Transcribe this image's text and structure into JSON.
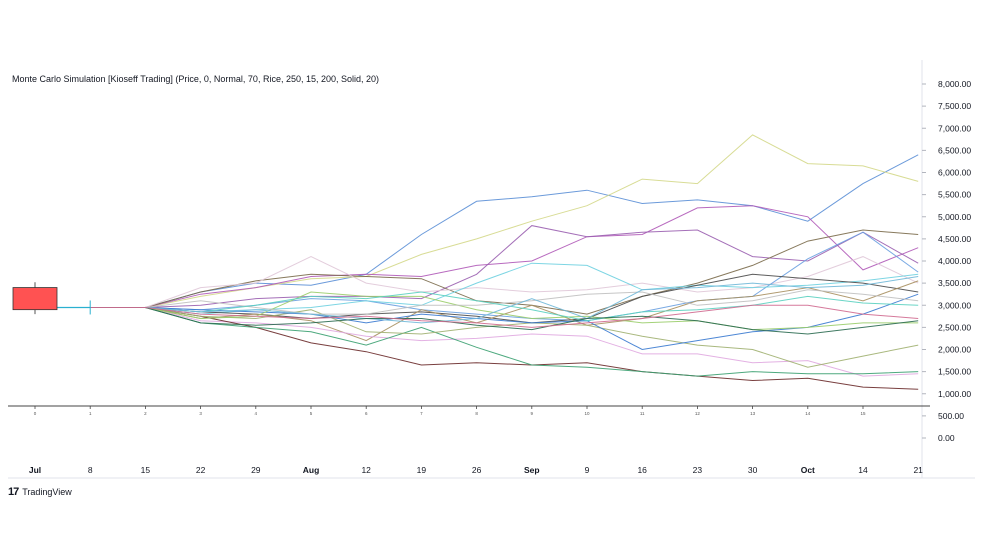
{
  "header": {
    "title": "Monte Carlo Simulation [Kioseff Trading] (Price, 0, Normal, 70, Rice, 250, 15, 200, Solid, 20)"
  },
  "branding": {
    "logo": "17",
    "name": "TradingView"
  },
  "chart_data": {
    "type": "line",
    "title": "Monte Carlo Simulation [Kioseff Trading] (Price, 0, Normal, 70, Rice, 250, 15, 200, Solid, 20)",
    "xlabel": "",
    "ylabel": "",
    "ylim": [
      0,
      8000
    ],
    "y_ticks": [
      "8,000.00",
      "7,500.00",
      "7,000.00",
      "6,500.00",
      "6,000.00",
      "5,500.00",
      "5,000.00",
      "4,500.00",
      "4,000.00",
      "3,500.00",
      "3,000.00",
      "2,500.00",
      "2,000.00",
      "1,500.00",
      "1,000.00",
      "500.00",
      "0.00"
    ],
    "y_tick_values": [
      8000,
      7500,
      7000,
      6500,
      6000,
      5500,
      5000,
      4500,
      4000,
      3500,
      3000,
      2500,
      2000,
      1500,
      1000,
      500,
      0
    ],
    "x_date_labels": [
      "Jul",
      "8",
      "15",
      "22",
      "29",
      "Aug",
      "12",
      "19",
      "26",
      "Sep",
      "9",
      "16",
      "23",
      "30",
      "Oct",
      "14",
      "21"
    ],
    "step_labels": [
      "0",
      "1",
      "2",
      "3",
      "4",
      "5",
      "6",
      "7",
      "8",
      "9",
      "10",
      "11",
      "12",
      "13",
      "14",
      "15"
    ],
    "candle": {
      "open": 2900,
      "close": 3400,
      "high": 3520,
      "low": 2800,
      "color": "#ff5252"
    },
    "start_value": 2950,
    "grid": false,
    "series": [
      {
        "color": "#5b8fd6",
        "values": [
          2950,
          3300,
          3500,
          3450,
          3700,
          4600,
          5350,
          5450,
          5600,
          5300,
          5380,
          5250,
          4900,
          5750,
          6400
        ]
      },
      {
        "color": "#d4d88a",
        "values": [
          2950,
          3200,
          3400,
          3600,
          3650,
          4150,
          4500,
          4900,
          5250,
          5850,
          5750,
          6850,
          6200,
          6150,
          5800
        ]
      },
      {
        "color": "#b05ab8",
        "values": [
          2950,
          3250,
          3400,
          3650,
          3700,
          3650,
          3900,
          4000,
          4550,
          4600,
          5200,
          5250,
          5000,
          3800,
          4300
        ]
      },
      {
        "color": "#9a5fb0",
        "values": [
          2950,
          3000,
          3150,
          3200,
          3200,
          3150,
          3700,
          4800,
          4550,
          4650,
          4700,
          4100,
          4000,
          4650,
          3950
        ]
      },
      {
        "color": "#7a6a4a",
        "values": [
          2950,
          3300,
          3550,
          3700,
          3650,
          3600,
          3100,
          3000,
          2800,
          3200,
          3500,
          3900,
          4450,
          4700,
          4600
        ]
      },
      {
        "color": "#e0c8d8",
        "values": [
          2950,
          3400,
          3500,
          4100,
          3500,
          3300,
          3400,
          3300,
          3350,
          3500,
          3300,
          3400,
          3650,
          4100,
          3500
        ]
      },
      {
        "color": "#6aa0e0",
        "values": [
          2950,
          2900,
          3000,
          3150,
          3100,
          2900,
          2800,
          2700,
          2650,
          2850,
          3100,
          3200,
          4050,
          4650,
          3750
        ]
      },
      {
        "color": "#6fd0e0",
        "values": [
          2950,
          2800,
          2900,
          2950,
          3100,
          3000,
          3500,
          3950,
          3900,
          3350,
          3450,
          3400,
          3450,
          3550,
          3700
        ]
      },
      {
        "color": "#4a4a4a",
        "values": [
          2950,
          2850,
          2800,
          2700,
          2800,
          2850,
          2750,
          2600,
          2700,
          3200,
          3450,
          3700,
          3600,
          3500,
          3300
        ]
      },
      {
        "color": "#a89060",
        "values": [
          2950,
          2700,
          2800,
          2650,
          2200,
          2900,
          2600,
          3000,
          2550,
          2700,
          3100,
          3200,
          3400,
          3100,
          3550
        ]
      },
      {
        "color": "#e0a8e0",
        "values": [
          2950,
          2650,
          2600,
          2500,
          2300,
          2200,
          2250,
          2350,
          2300,
          1900,
          1900,
          1700,
          1750,
          1400,
          1450
        ]
      },
      {
        "color": "#6a2a2a",
        "values": [
          2950,
          2750,
          2500,
          2150,
          1950,
          1650,
          1700,
          1650,
          1700,
          1500,
          1400,
          1300,
          1350,
          1150,
          1100
        ]
      },
      {
        "color": "#3aa070",
        "values": [
          2950,
          2600,
          2500,
          2400,
          2100,
          2500,
          2050,
          1650,
          1600,
          1500,
          1400,
          1500,
          1450,
          1450,
          1500
        ]
      },
      {
        "color": "#a0b070",
        "values": [
          2950,
          2750,
          2700,
          2900,
          2400,
          2350,
          2500,
          2600,
          2550,
          2300,
          2100,
          2000,
          1600,
          1850,
          2100
        ]
      },
      {
        "color": "#3a7ad0",
        "values": [
          2950,
          2900,
          2850,
          2800,
          2600,
          2800,
          2700,
          2600,
          2650,
          2000,
          2200,
          2400,
          2500,
          2800,
          3250
        ]
      },
      {
        "color": "#9acd6a",
        "values": [
          2950,
          2700,
          2750,
          3300,
          3200,
          3200,
          2900,
          2700,
          2750,
          2600,
          2650,
          2450,
          2500,
          2600,
          2600
        ]
      },
      {
        "color": "#c0c0c0",
        "values": [
          2950,
          3100,
          2950,
          2800,
          2800,
          3000,
          3000,
          3100,
          3250,
          3300,
          3000,
          3100,
          3350,
          3250,
          3100
        ]
      },
      {
        "color": "#5ad0c0",
        "values": [
          2950,
          2850,
          3000,
          3200,
          3150,
          3300,
          3100,
          2900,
          2650,
          2850,
          2900,
          3000,
          3200,
          3050,
          3000
        ]
      },
      {
        "color": "#70b8d8",
        "values": [
          2950,
          2850,
          2900,
          2800,
          2700,
          2600,
          2700,
          3150,
          2700,
          3350,
          3400,
          3500,
          3400,
          3450,
          3650
        ]
      },
      {
        "color": "#2a6a50",
        "values": [
          2950,
          2600,
          2550,
          2600,
          2700,
          2700,
          2550,
          2450,
          2700,
          2750,
          2650,
          2450,
          2350,
          2500,
          2650
        ]
      },
      {
        "color": "#d06a90",
        "values": [
          2950,
          2800,
          2750,
          2700,
          2750,
          2650,
          2600,
          2500,
          2600,
          2700,
          2850,
          3000,
          3000,
          2800,
          2700
        ]
      }
    ]
  }
}
